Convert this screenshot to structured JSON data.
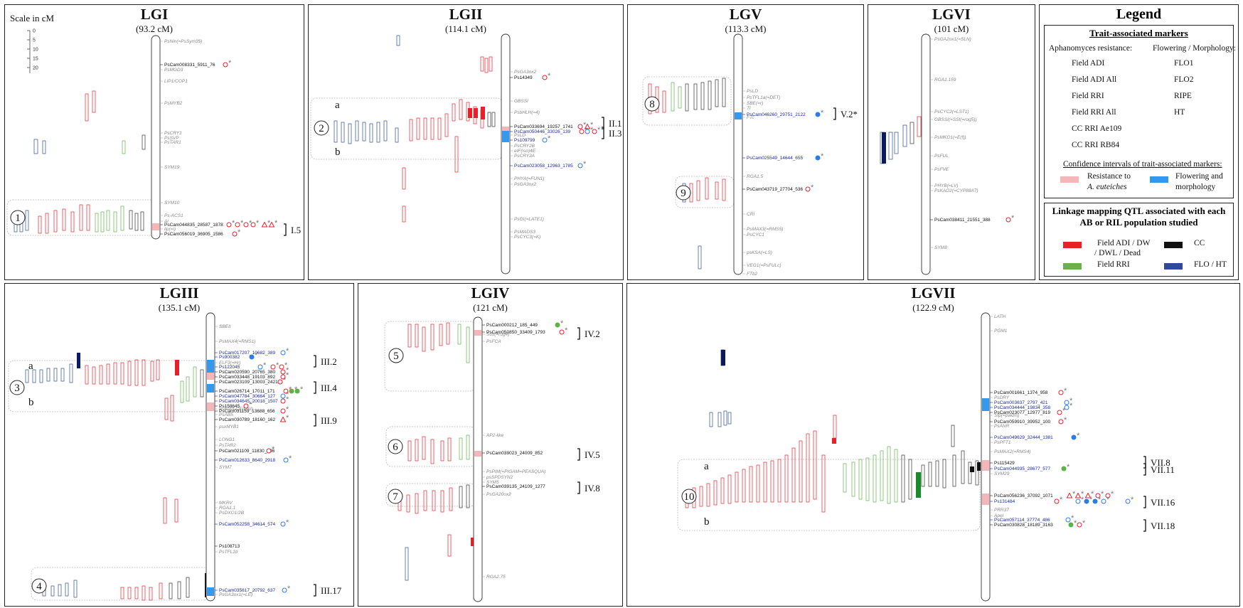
{
  "scale": {
    "label": "Scale in cM",
    "ticks": [
      "0",
      "5",
      "10",
      "15",
      "20"
    ]
  },
  "panels": [
    {
      "id": "LGI",
      "title": "LGI",
      "length": "(93.2 cM)",
      "gray": [
        [
          "PsNin(=PsSym35)",
          58
        ],
        [
          "PsMGD3",
          98
        ],
        [
          "LIP1/COP1",
          114
        ],
        [
          "PsMYB2",
          145
        ],
        [
          "PsCRY1",
          187
        ],
        [
          "PsSVP",
          194
        ],
        [
          "PsTAR1",
          200
        ],
        [
          "SYM19",
          235
        ],
        [
          "SYM10",
          285
        ],
        [
          "Ps-ACS1",
          303
        ],
        [
          "Ai",
          311
        ],
        [
          "lip(=i)",
          322
        ]
      ],
      "black": [
        [
          "PsCam008331_5911_76",
          91
        ],
        [
          "PsCam044835_28587_1878",
          316
        ],
        [
          "PsCam056019_36905_1586",
          329
        ]
      ],
      "qtl": [
        [
          "I.5",
          323
        ]
      ],
      "circles": [
        [
          "1",
          306
        ]
      ]
    },
    {
      "id": "LGII",
      "title": "LGII",
      "length": "(114.1 cM)",
      "gray": [
        [
          "PsGA3ox2",
          101
        ],
        [
          "PsbHLH(=4)",
          158
        ],
        [
          "GBSSI",
          142
        ],
        [
          "PsLD",
          190
        ],
        [
          "PsCRY2B",
          205
        ],
        [
          "eIF(iso)4E",
          212
        ],
        [
          "PsCRY2A",
          219
        ],
        [
          "PHYA(=FUN1)",
          251
        ],
        [
          "PsGA3ox2",
          259
        ],
        [
          "PsGI(=LATE1)",
          308
        ],
        [
          "PsMADS3",
          326
        ],
        [
          "PsCYC3(=K)",
          333
        ]
      ],
      "black": [
        [
          "Ps14349",
          109
        ],
        [
          "PsCam033694_19257_1741",
          178
        ]
      ],
      "blue": [
        [
          "PsCam050446_33026_139",
          185
        ],
        [
          "Ps109799",
          197
        ],
        [
          "PsCam023058_12963_1785",
          233
        ]
      ],
      "qtl": [
        [
          "II.1",
          173
        ],
        [
          "II.3",
          187
        ]
      ],
      "circles": [
        [
          "2",
          180
        ]
      ],
      "sub": [
        "a",
        "b"
      ]
    },
    {
      "id": "LGV",
      "title": "LGV",
      "length": "(113.3 cM)",
      "gray": [
        [
          "PsLD",
          128
        ],
        [
          "PsTFL1a(=DET)",
          137
        ],
        [
          "SBE(=r)",
          145
        ],
        [
          "Tl",
          152
        ],
        [
          "FTc",
          165
        ],
        [
          "RGA1.5",
          248
        ],
        [
          "CRI",
          301
        ],
        [
          "PsMAX3(=RMS5)",
          322
        ],
        [
          "PsCYC1",
          330
        ],
        [
          "psKSA(=LS)",
          355
        ],
        [
          "VEG1(=PsFULc)",
          373
        ],
        [
          "FTb2",
          385
        ]
      ],
      "black": [
        [
          "PsCam043719_27704_536",
          266
        ]
      ],
      "blue": [
        [
          "PsCam046260_29751_2122",
          161
        ],
        [
          "PsCam025549_14644_655",
          222
        ]
      ],
      "qtl": [
        [
          "V.2*",
          160
        ]
      ],
      "circles": [
        [
          "8",
          146
        ],
        [
          "9",
          271
        ]
      ]
    },
    {
      "id": "LGVI",
      "title": "LGVI",
      "length": "(101 cM)",
      "gray": [
        [
          "PsGA2ox1(=SLN)",
          55
        ],
        [
          "RGA1.159",
          112
        ],
        [
          "PsCYC2(=LST1)",
          157
        ],
        [
          "GBSSI(=SSI(=rug5))",
          168
        ],
        [
          "PsMKO1(=E(f))",
          193
        ],
        [
          "PsFUL",
          219
        ],
        [
          "PsFVE",
          238
        ],
        [
          "PHYB(=LV)",
          261
        ],
        [
          "PsKAO2(=CYP88A7)",
          268
        ],
        [
          "SYM8",
          348
        ]
      ],
      "black": [
        [
          "PsCam038411_21551_388",
          309
        ]
      ]
    },
    {
      "id": "LGIII",
      "title": "LGIII",
      "length": "(135.1 cM)",
      "gray": [
        [
          "SBEII",
          459
        ],
        [
          "PsMAX4(=RMS1)",
          480
        ],
        [
          "ELF3(=Hr)",
          510
        ],
        [
          "PsFAPLCE(UNI)",
          575
        ],
        [
          "PsAB5",
          583
        ],
        [
          "psxMYB1",
          600
        ],
        [
          "LONG1",
          618
        ],
        [
          "PsTAR2",
          626
        ],
        [
          "SYM7",
          657
        ],
        [
          "MKRV",
          707
        ],
        [
          "RGA1.1",
          714
        ],
        [
          "PsDXO1/2B",
          721
        ],
        [
          "PsTFL1b",
          776
        ],
        [
          "PsGA3ox1(=LE)",
          836
        ]
      ],
      "black": [
        [
          "PsCam020590_20765_380",
          523
        ],
        [
          "PsCam033448_19103_892",
          530
        ],
        [
          "PsCam023109_13003_2421",
          537
        ],
        [
          "PsCam026714_17011_171",
          550
        ],
        [
          "Ps158645",
          571
        ],
        [
          "PsCam031159_13688_656",
          578
        ],
        [
          "PsCam030789_18160_162",
          590
        ],
        [
          "PsCam021109_11830_296",
          634
        ],
        [
          "Ps108713",
          768
        ]
      ],
      "blue": [
        [
          "PsCam017207_10682_389",
          496
        ],
        [
          "Ps900382",
          502
        ],
        [
          "Ps122045",
          516
        ],
        [
          "PsCam047784_30664_127",
          557
        ],
        [
          "PsCam034645_20018_1507",
          564
        ],
        [
          "PsCam012633_8640_2918",
          647
        ],
        [
          "PsCam052258_34614_574",
          737
        ],
        [
          "PsCam035617_20792_637",
          830
        ]
      ],
      "qtl": [
        [
          "III.2",
          508
        ],
        [
          "III.4",
          545
        ],
        [
          "III.9",
          591
        ],
        [
          "III.17",
          830
        ]
      ],
      "circles": [
        [
          "3",
          545
        ],
        [
          "4",
          824
        ]
      ],
      "sub": [
        "a",
        "b"
      ]
    },
    {
      "id": "LGIV",
      "title": "LGIV",
      "length": "(121 cM)",
      "gray": [
        [
          "Sus(=rug4)",
          470
        ],
        [
          "PsFCA",
          480
        ],
        [
          "AP2-like",
          612
        ],
        [
          "PsPIM(=PIGAM=PEASQUA)",
          663
        ],
        [
          "psSPDSYN2",
          671
        ],
        [
          "SYM5",
          678
        ],
        [
          "PsGA20ox2",
          695
        ],
        [
          "RGA2.75",
          811
        ]
      ],
      "black": [
        [
          "PsCam000212_185_449",
          457
        ],
        [
          "PsCam050850_33409_1793",
          467
        ],
        [
          "PsCam039023_24009_852",
          637
        ],
        [
          "PsCam039135_24109_1277",
          684
        ]
      ],
      "qtl": [
        [
          "IV.2",
          469
        ],
        [
          "IV.5",
          639
        ],
        [
          "IV.8",
          686
        ]
      ],
      "circles": [
        [
          "5",
          500
        ],
        [
          "6",
          628
        ],
        [
          "7",
          698
        ]
      ]
    },
    {
      "id": "LGVII",
      "title": "LGVII",
      "length": "(122.9 cM)",
      "gray": [
        [
          "LATH",
          445
        ],
        [
          "PGM1",
          465
        ],
        [
          "PsDRY",
          559
        ],
        [
          "Sfp(=pwdrn)",
          584
        ],
        [
          "PsANR",
          599
        ],
        [
          "PsPFT1",
          622
        ],
        [
          "PsMAX2(=RMS4)",
          635
        ],
        [
          "SYM29",
          666
        ],
        [
          "PRR37",
          717
        ],
        [
          "Apel",
          725
        ]
      ],
      "black": [
        [
          "PsCam001661_1374_958",
          552
        ],
        [
          "PsCam023077_12977_819",
          580
        ],
        [
          "PsCam059910_39952_100",
          593
        ],
        [
          "Ps115429",
          651
        ],
        [
          "PsCam056236_37092_1071",
          697
        ],
        [
          "PsCam030828_18189_3163",
          738
        ]
      ],
      "blue": [
        [
          "PsCam003637_2797_421",
          566
        ],
        [
          "PsCam034444_19834_358",
          573
        ],
        [
          "PsCam049629_32444_1381",
          615
        ],
        [
          "PsCam044935_28677_577",
          659
        ],
        [
          "Ps131484",
          705
        ],
        [
          "PsCam057114_37774_486",
          731
        ]
      ],
      "qtl": [
        [
          "VII.8",
          650
        ],
        [
          "VII.11",
          660
        ],
        [
          "VII.16",
          706
        ],
        [
          "VII.18",
          739
        ]
      ],
      "circles": [
        [
          "10",
          698
        ]
      ],
      "sub": [
        "a",
        "b"
      ]
    }
  ],
  "legend": {
    "title": "Legend",
    "trait_header": "Trait-associated markers",
    "aph_header": "Aphanomyces resistance:",
    "flo_header": "Flowering / Morphology:",
    "aph_items": [
      "Field ADI",
      "Field ADI All",
      "Field RRI",
      "Field RRI All",
      "CC RRI Ae109",
      "CC RRI RB84"
    ],
    "flo_items": [
      "FLO1",
      "FLO2",
      "RIPE",
      "HT"
    ],
    "ci_header": "Confidence intervals of trait-associated markers:",
    "ci_items": [
      "Resistance to",
      "A. euteiches",
      "Flowering and",
      "morphology"
    ],
    "qtl_header": "Linkage mapping QTL associated with each AB or RIL population studied",
    "qtl_items": [
      "Field ADI / DW",
      "/ DWL / Dead",
      "CC",
      "Field RRI",
      "FLO / HT"
    ],
    "colors": {
      "red": "#e8202a",
      "blue": "#2b7de9",
      "green": "#5db344",
      "dark": "#1a1a1a",
      "navy": "#2d4a9a",
      "pink": "#f4b6b9",
      "lightblue": "#3399ee"
    }
  }
}
